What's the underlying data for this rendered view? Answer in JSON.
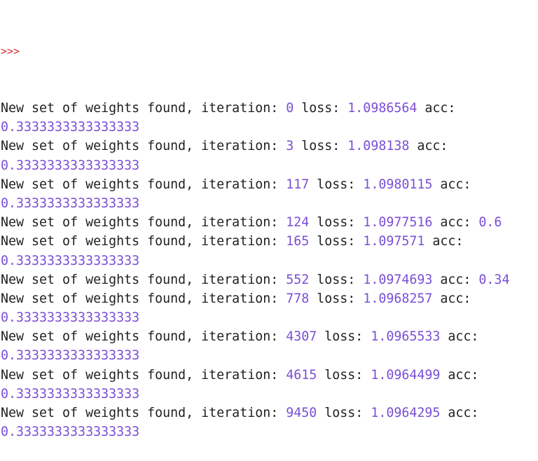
{
  "console": {
    "prompt": ">>>",
    "colors": {
      "text": "#1f1f1f",
      "prompt": "#d42c2c",
      "number": "#7a4fd6",
      "background": "#ffffff"
    },
    "lines": [
      {
        "prefix": "New set of weights found, iteration: ",
        "iteration": "0",
        "loss_label": " loss: ",
        "loss": "1.0986564",
        "acc_label": " acc:",
        "acc_inline": ""
      },
      {
        "acc_value": "0.3333333333333333"
      },
      {
        "prefix": "New set of weights found, iteration: ",
        "iteration": "3",
        "loss_label": " loss: ",
        "loss": "1.098138",
        "acc_label": " acc:",
        "acc_inline": ""
      },
      {
        "acc_value": "0.3333333333333333"
      },
      {
        "prefix": "New set of weights found, iteration: ",
        "iteration": "117",
        "loss_label": " loss: ",
        "loss": "1.0980115",
        "acc_label": " acc:",
        "acc_inline": ""
      },
      {
        "acc_value": "0.3333333333333333"
      },
      {
        "prefix": "New set of weights found, iteration: ",
        "iteration": "124",
        "loss_label": " loss: ",
        "loss": "1.0977516",
        "acc_label": " acc: ",
        "acc_inline": "0.6"
      },
      {
        "prefix": "New set of weights found, iteration: ",
        "iteration": "165",
        "loss_label": " loss: ",
        "loss": "1.097571",
        "acc_label": " acc:",
        "acc_inline": ""
      },
      {
        "acc_value": "0.3333333333333333"
      },
      {
        "prefix": "New set of weights found, iteration: ",
        "iteration": "552",
        "loss_label": " loss: ",
        "loss": "1.0974693",
        "acc_label": " acc: ",
        "acc_inline": "0.34"
      },
      {
        "prefix": "New set of weights found, iteration: ",
        "iteration": "778",
        "loss_label": " loss: ",
        "loss": "1.0968257",
        "acc_label": " acc:",
        "acc_inline": ""
      },
      {
        "acc_value": "0.3333333333333333"
      },
      {
        "prefix": "New set of weights found, iteration: ",
        "iteration": "4307",
        "loss_label": " loss: ",
        "loss": "1.0965533",
        "acc_label": " acc:",
        "acc_inline": ""
      },
      {
        "acc_value": "0.3333333333333333"
      },
      {
        "prefix": "New set of weights found, iteration: ",
        "iteration": "4615",
        "loss_label": " loss: ",
        "loss": "1.0964499",
        "acc_label": " acc:",
        "acc_inline": ""
      },
      {
        "acc_value": "0.3333333333333333"
      },
      {
        "prefix": "New set of weights found, iteration: ",
        "iteration": "9450",
        "loss_label": " loss: ",
        "loss": "1.0964295",
        "acc_label": " acc:",
        "acc_inline": ""
      },
      {
        "acc_value": "0.3333333333333333"
      }
    ]
  }
}
